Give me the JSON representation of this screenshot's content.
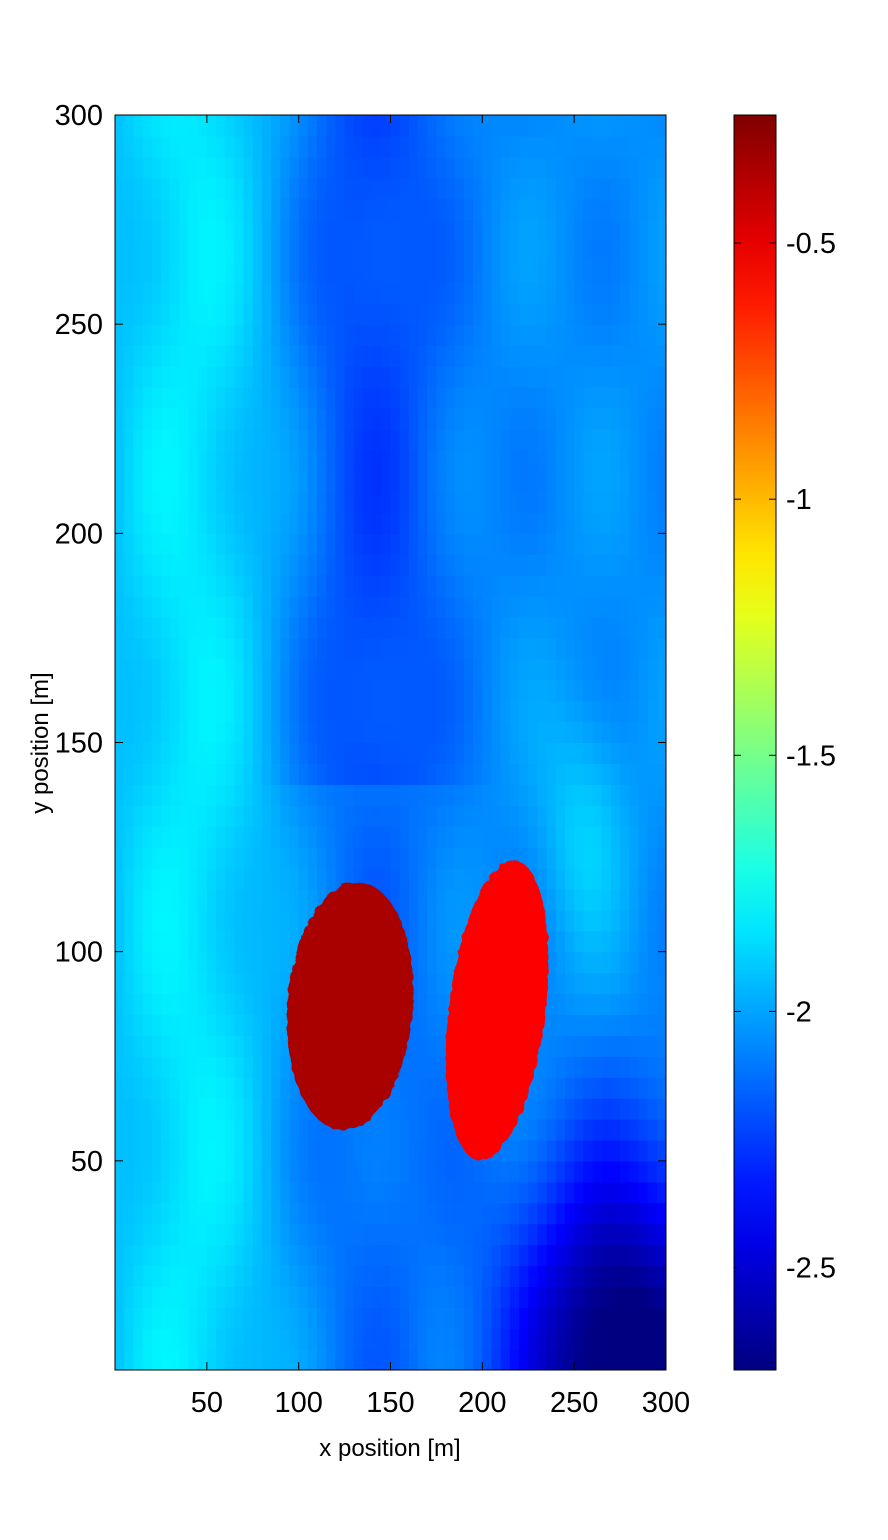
{
  "chart_data": {
    "type": "heatmap",
    "title": "",
    "xlabel": "x position [m]",
    "ylabel": "y position [m]",
    "xlim": [
      0,
      300
    ],
    "ylim": [
      0,
      300
    ],
    "x_ticks": [
      50,
      100,
      150,
      200,
      250,
      300
    ],
    "y_ticks": [
      50,
      100,
      150,
      200,
      250,
      300
    ],
    "colormap": "jet",
    "colorbar": {
      "range": [
        -2.7,
        -0.25
      ],
      "ticks": [
        -2.5,
        -2,
        -1.5,
        -1,
        -0.5
      ],
      "tick_labels": [
        "-2.5",
        "-2",
        "-1.5",
        "-1",
        "-0.5"
      ],
      "position": "right"
    },
    "background_field": {
      "description_values": "smooth field mostly between -2.35 and -1.75",
      "value_range": [
        -2.7,
        -1.75
      ]
    },
    "anomalies": [
      {
        "name": "",
        "center": [
          128,
          87
        ],
        "semi_axes": [
          35,
          29
        ],
        "rotation_deg": 18,
        "value": -0.35
      },
      {
        "name": "",
        "center": [
          208,
          86
        ],
        "semi_axes": [
          38,
          25
        ],
        "rotation_deg": 64,
        "value": -0.55
      }
    ],
    "grid": false,
    "legend": "none"
  }
}
